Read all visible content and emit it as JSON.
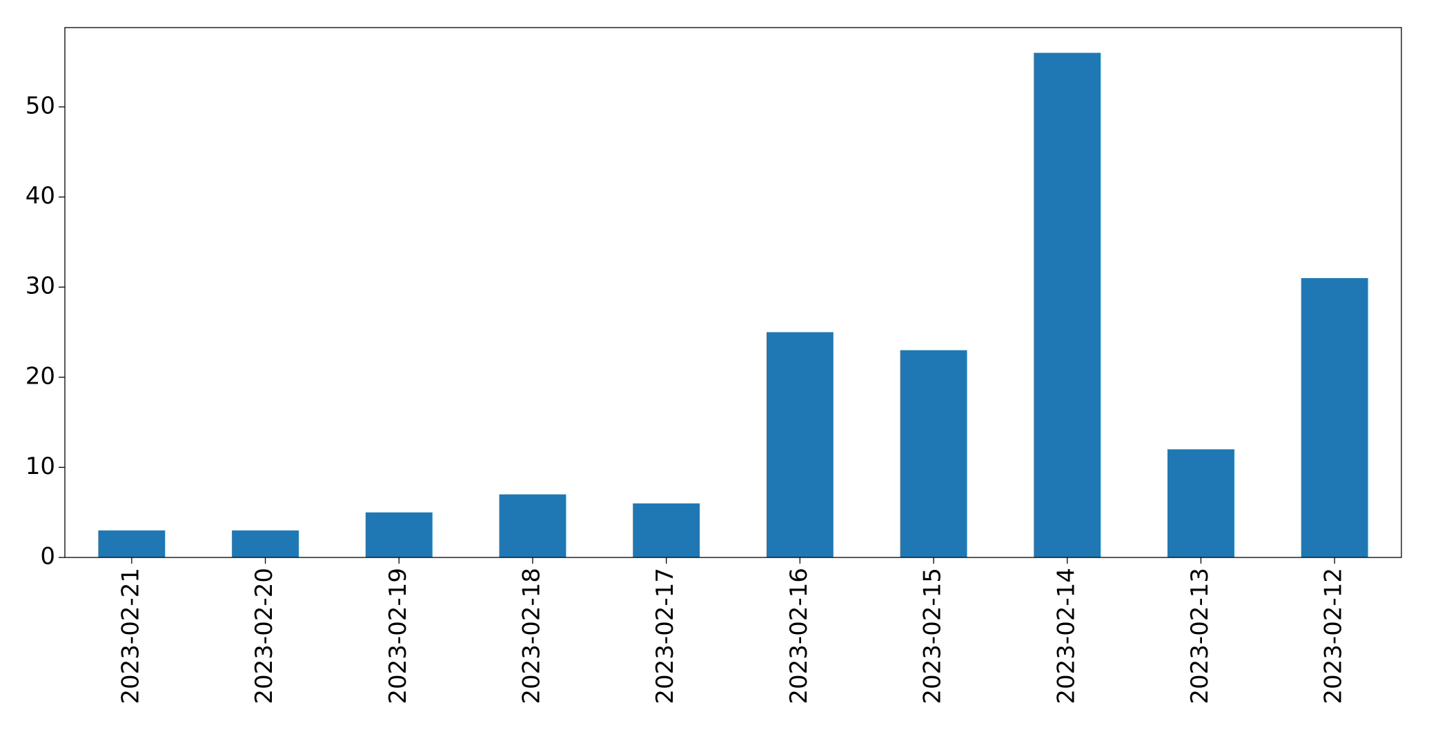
{
  "chart_data": {
    "type": "bar",
    "categories": [
      "2023-02-21",
      "2023-02-20",
      "2023-02-19",
      "2023-02-18",
      "2023-02-17",
      "2023-02-16",
      "2023-02-15",
      "2023-02-14",
      "2023-02-13",
      "2023-02-12"
    ],
    "values": [
      3,
      3,
      5,
      7,
      6,
      25,
      23,
      56,
      12,
      31
    ],
    "color": "#1f77b4",
    "ylim": [
      0,
      58.8
    ],
    "yticks": [
      0,
      10,
      20,
      30,
      40,
      50
    ],
    "grid": false
  }
}
